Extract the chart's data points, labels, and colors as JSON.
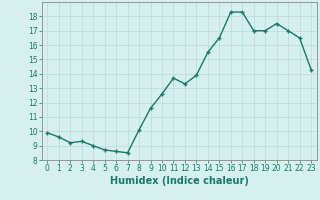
{
  "x": [
    0,
    1,
    2,
    3,
    4,
    5,
    6,
    7,
    8,
    9,
    10,
    11,
    12,
    13,
    14,
    15,
    16,
    17,
    18,
    19,
    20,
    21,
    22,
    23
  ],
  "y": [
    9.9,
    9.6,
    9.2,
    9.3,
    9.0,
    8.7,
    8.6,
    8.5,
    10.1,
    11.6,
    12.6,
    13.7,
    13.3,
    13.9,
    15.5,
    16.5,
    18.3,
    18.3,
    17.0,
    17.0,
    17.5,
    17.0,
    16.5,
    14.3
  ],
  "line_color": "#1a7a6a",
  "marker_color": "#1a7a6a",
  "bg_color": "#d6f0ef",
  "grid_color": "#c0dede",
  "xlabel": "Humidex (Indice chaleur)",
  "ylim": [
    8,
    19
  ],
  "xlim": [
    -0.5,
    23.5
  ],
  "yticks": [
    8,
    9,
    10,
    11,
    12,
    13,
    14,
    15,
    16,
    17,
    18
  ],
  "xticks": [
    0,
    1,
    2,
    3,
    4,
    5,
    6,
    7,
    8,
    9,
    10,
    11,
    12,
    13,
    14,
    15,
    16,
    17,
    18,
    19,
    20,
    21,
    22,
    23
  ],
  "tick_label_fontsize": 5.5,
  "xlabel_fontsize": 7,
  "marker_size": 3.5,
  "line_width": 1.0
}
